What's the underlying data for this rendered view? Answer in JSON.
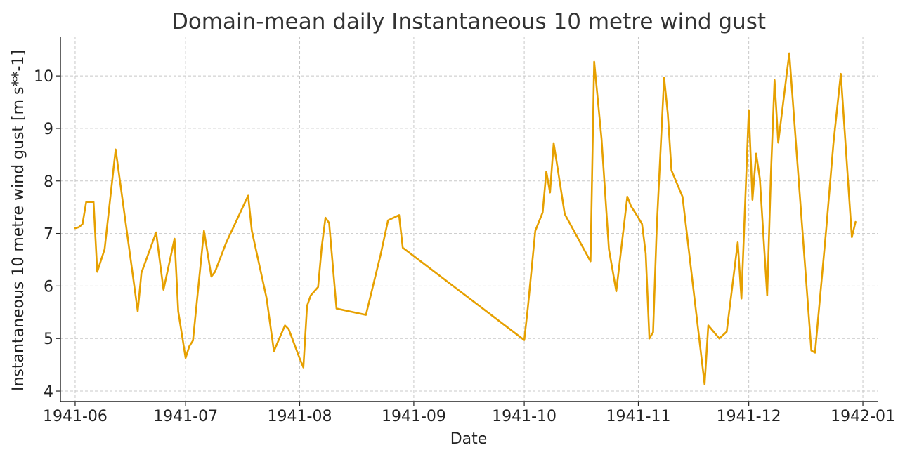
{
  "chart_data": {
    "type": "line",
    "title": "Domain-mean daily Instantaneous 10 metre wind gust",
    "xlabel": "Date",
    "ylabel": "Instantaneous 10 metre wind gust [m s**-1]",
    "xlim": [
      "1941-05-28",
      "1942-01-05"
    ],
    "ylim": [
      3.8,
      10.75
    ],
    "x_ticks": [
      "1941-06-01",
      "1941-07-01",
      "1941-08-01",
      "1941-09-01",
      "1941-10-01",
      "1941-11-01",
      "1941-12-01",
      "1942-01-01"
    ],
    "x_tick_labels": [
      "1941-06",
      "1941-07",
      "1941-08",
      "1941-09",
      "1941-10",
      "1941-11",
      "1941-12",
      "1942-01"
    ],
    "y_ticks": [
      4,
      5,
      6,
      7,
      8,
      9,
      10
    ],
    "y_tick_labels": [
      "4",
      "5",
      "6",
      "7",
      "8",
      "9",
      "10"
    ],
    "grid": true,
    "series": [
      {
        "color": "#E6A000",
        "points": [
          [
            "1941-06-01",
            7.1
          ],
          [
            "1941-06-02",
            7.12
          ],
          [
            "1941-06-03",
            7.18
          ],
          [
            "1941-06-04",
            7.6
          ],
          [
            "1941-06-06",
            7.6
          ],
          [
            "1941-06-07",
            6.27
          ],
          [
            "1941-06-09",
            6.7
          ],
          [
            "1941-06-12",
            8.6
          ],
          [
            "1941-06-18",
            5.52
          ],
          [
            "1941-06-19",
            6.25
          ],
          [
            "1941-06-23",
            7.02
          ],
          [
            "1941-06-25",
            5.93
          ],
          [
            "1941-06-28",
            6.9
          ],
          [
            "1941-06-29",
            5.52
          ],
          [
            "1941-07-01",
            4.63
          ],
          [
            "1941-07-02",
            4.85
          ],
          [
            "1941-07-03",
            4.96
          ],
          [
            "1941-07-06",
            7.05
          ],
          [
            "1941-07-08",
            6.18
          ],
          [
            "1941-07-09",
            6.27
          ],
          [
            "1941-07-12",
            6.82
          ],
          [
            "1941-07-18",
            7.72
          ],
          [
            "1941-07-19",
            7.05
          ],
          [
            "1941-07-23",
            5.77
          ],
          [
            "1941-07-25",
            4.76
          ],
          [
            "1941-07-28",
            5.25
          ],
          [
            "1941-07-29",
            5.18
          ],
          [
            "1941-08-01",
            4.62
          ],
          [
            "1941-08-02",
            4.45
          ],
          [
            "1941-08-03",
            5.62
          ],
          [
            "1941-08-04",
            5.82
          ],
          [
            "1941-08-06",
            5.98
          ],
          [
            "1941-08-07",
            6.75
          ],
          [
            "1941-08-08",
            7.3
          ],
          [
            "1941-08-09",
            7.2
          ],
          [
            "1941-08-11",
            5.57
          ],
          [
            "1941-08-19",
            5.45
          ],
          [
            "1941-08-23",
            6.6
          ],
          [
            "1941-08-25",
            7.25
          ],
          [
            "1941-08-28",
            7.35
          ],
          [
            "1941-08-29",
            6.73
          ],
          [
            "1941-10-01",
            4.97
          ],
          [
            "1941-10-02",
            5.6
          ],
          [
            "1941-10-04",
            7.05
          ],
          [
            "1941-10-06",
            7.4
          ],
          [
            "1941-10-07",
            8.18
          ],
          [
            "1941-10-08",
            7.78
          ],
          [
            "1941-10-09",
            8.72
          ],
          [
            "1941-10-12",
            7.37
          ],
          [
            "1941-10-19",
            6.47
          ],
          [
            "1941-10-20",
            10.27
          ],
          [
            "1941-10-22",
            8.8
          ],
          [
            "1941-10-24",
            6.7
          ],
          [
            "1941-10-26",
            5.9
          ],
          [
            "1941-10-29",
            7.7
          ],
          [
            "1941-10-30",
            7.52
          ],
          [
            "1941-11-01",
            7.3
          ],
          [
            "1941-11-02",
            7.18
          ],
          [
            "1941-11-03",
            6.62
          ],
          [
            "1941-11-04",
            5.0
          ],
          [
            "1941-11-05",
            5.12
          ],
          [
            "1941-11-06",
            7.12
          ],
          [
            "1941-11-08",
            9.97
          ],
          [
            "1941-11-09",
            9.28
          ],
          [
            "1941-11-10",
            8.2
          ],
          [
            "1941-11-13",
            7.7
          ],
          [
            "1941-11-19",
            4.13
          ],
          [
            "1941-11-20",
            5.25
          ],
          [
            "1941-11-23",
            5.0
          ],
          [
            "1941-11-25",
            5.13
          ],
          [
            "1941-11-28",
            6.83
          ],
          [
            "1941-11-29",
            5.76
          ],
          [
            "1941-12-01",
            9.35
          ],
          [
            "1941-12-02",
            7.64
          ],
          [
            "1941-12-03",
            8.52
          ],
          [
            "1941-12-04",
            8.05
          ],
          [
            "1941-12-06",
            5.82
          ],
          [
            "1941-12-07",
            8.1
          ],
          [
            "1941-12-08",
            9.92
          ],
          [
            "1941-12-09",
            8.73
          ],
          [
            "1941-12-12",
            10.43
          ],
          [
            "1941-12-18",
            4.77
          ],
          [
            "1941-12-19",
            4.73
          ],
          [
            "1941-12-22",
            7.05
          ],
          [
            "1941-12-24",
            8.72
          ],
          [
            "1941-12-26",
            10.04
          ],
          [
            "1941-12-29",
            6.93
          ],
          [
            "1941-12-30",
            7.22
          ]
        ]
      }
    ]
  }
}
